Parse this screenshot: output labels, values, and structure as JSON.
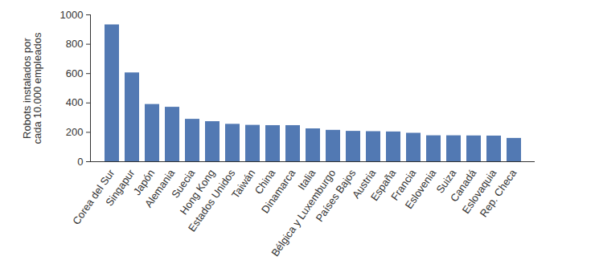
{
  "chart_data": {
    "type": "bar",
    "y_label": "Robots instalados por cada 10.000 empleados",
    "categories": [
      "Corea del Sur",
      "Singapur",
      "Japón",
      "Alemania",
      "Suecia",
      "Hong Kong",
      "Estados Unidos",
      "Taiwán",
      "China",
      "Dinamarca",
      "Italia",
      "Bélgica y Luxemburgo",
      "Países Bajos",
      "Austria",
      "España",
      "Francia",
      "Eslovenia",
      "Suiza",
      "Canadá",
      "Eslovaquia",
      "Rep. Checa"
    ],
    "values": [
      932,
      605,
      390,
      371,
      289,
      273,
      255,
      248,
      246,
      246,
      224,
      214,
      207,
      205,
      203,
      194,
      177,
      177,
      176,
      175,
      159
    ],
    "color": "#5279b3",
    "ylim": [
      0,
      1000
    ],
    "yticks": [
      0,
      200,
      400,
      600,
      800,
      1000
    ],
    "grid": false
  }
}
